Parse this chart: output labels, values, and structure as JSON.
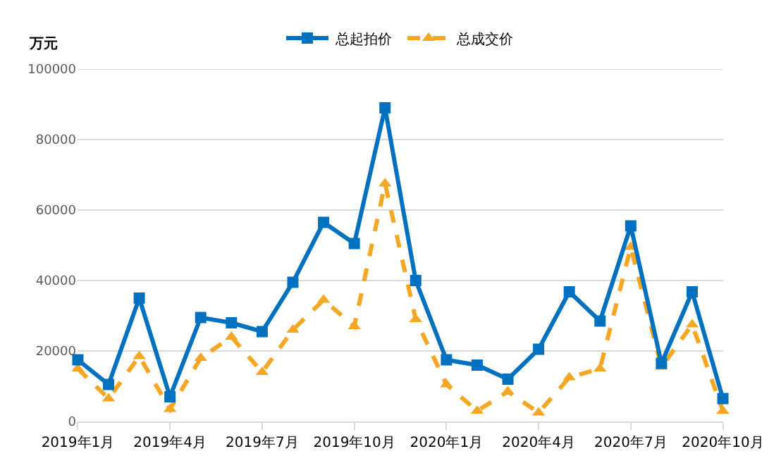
{
  "chart_data": {
    "type": "line",
    "ylabel": "万元",
    "categories": [
      "2019年1月",
      null,
      null,
      "2019年4月",
      null,
      null,
      "2019年7月",
      null,
      null,
      "2019年10月",
      null,
      null,
      "2020年1月",
      null,
      null,
      "2020年4月",
      null,
      null,
      "2020年7月",
      null,
      null,
      "2020年10月"
    ],
    "series": [
      {
        "name": "总起拍价",
        "color": "#0070c0",
        "marker": "square",
        "line_style": "solid",
        "values": [
          17500,
          10500,
          35000,
          7000,
          29500,
          28000,
          25500,
          39500,
          56500,
          50500,
          89000,
          40000,
          17500,
          16000,
          12000,
          20500,
          36800,
          28500,
          55500,
          16500,
          36800,
          6500
        ]
      },
      {
        "name": "总成交价",
        "color": "#f5a623",
        "marker": "triangle",
        "line_style": "dashed",
        "values": [
          15000,
          6500,
          18500,
          3500,
          18000,
          24000,
          14000,
          26000,
          34500,
          27000,
          67500,
          29000,
          10500,
          3000,
          8500,
          2500,
          12500,
          15000,
          49500,
          15500,
          27500,
          3000
        ]
      }
    ],
    "ylim": [
      0,
      100000
    ],
    "yticks": [
      0,
      20000,
      40000,
      60000,
      80000,
      100000
    ],
    "grid": "y",
    "legend": "top"
  }
}
